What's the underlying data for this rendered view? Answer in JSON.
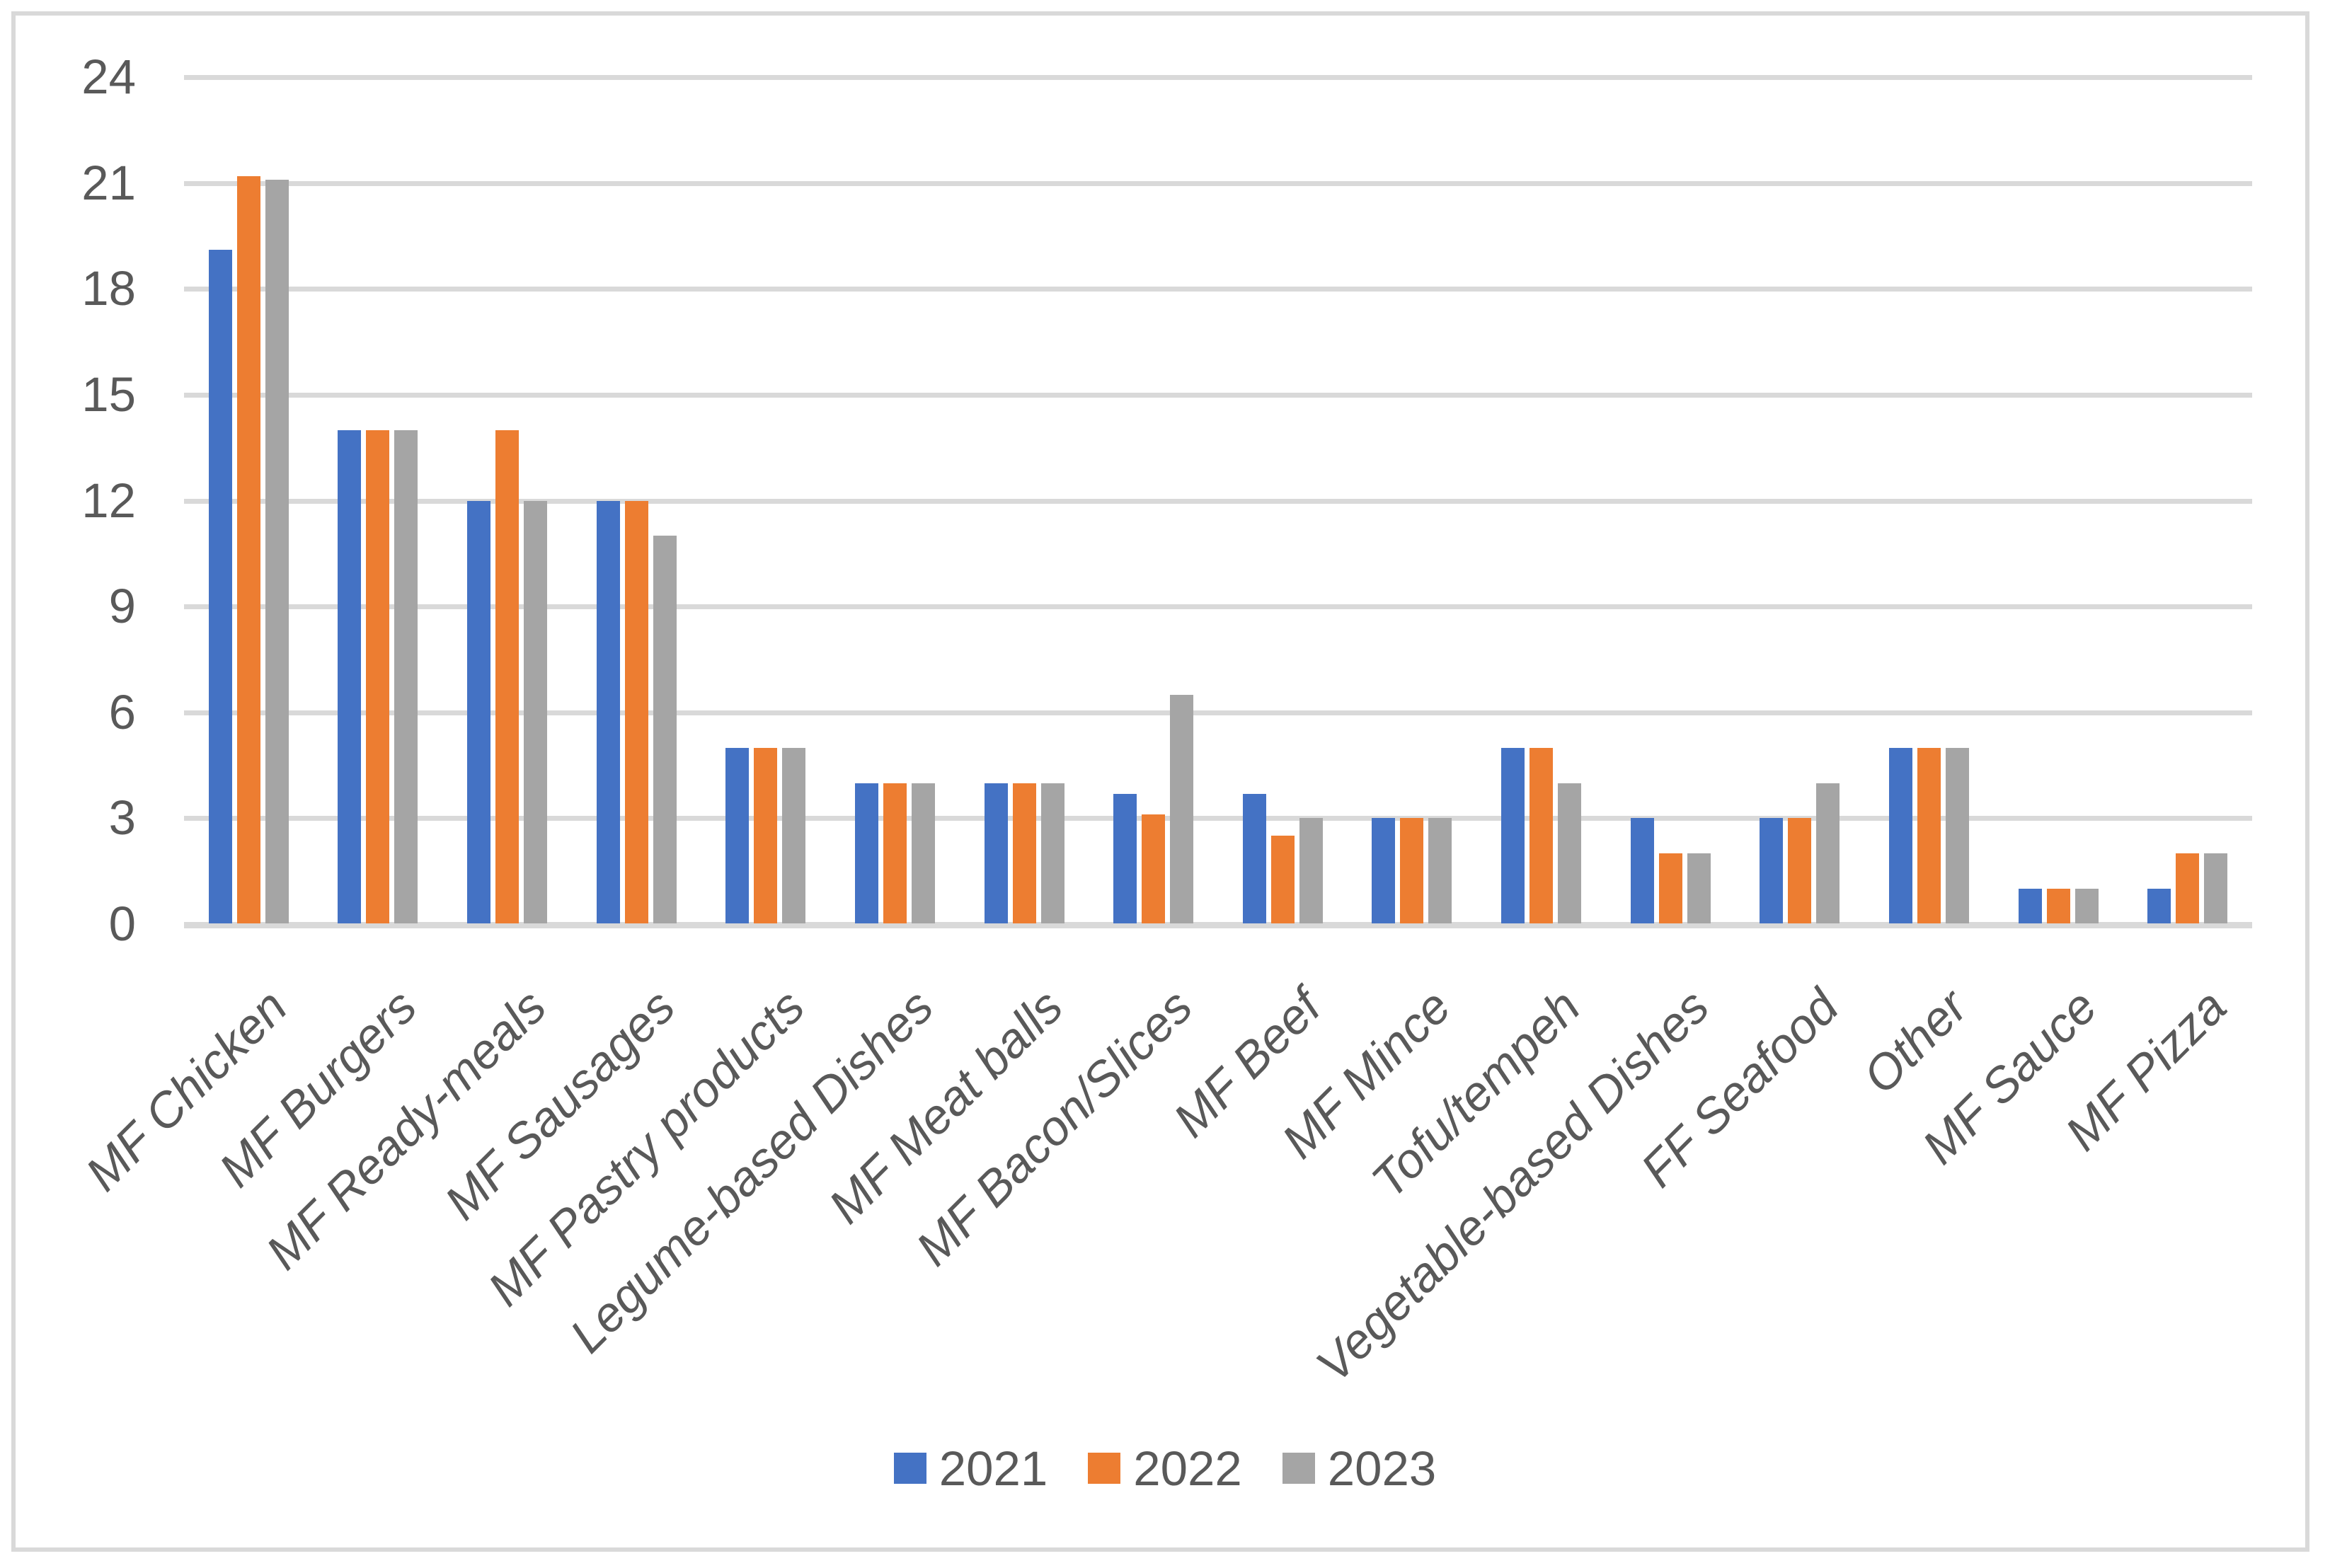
{
  "chart_data": {
    "type": "bar",
    "title": "",
    "xlabel": "",
    "ylabel": "",
    "categories": [
      "MF Chicken",
      "MF Burgers",
      "MF Ready-meals",
      "MF Sausages",
      "MF Pastry products",
      "Legume-based Dishes",
      "MF Meat balls",
      "MF Bacon/Slices",
      "MF Beef",
      "MF Mince",
      "Tofu/tempeh",
      "Vegetable-based Dishes",
      "FF Seafood",
      "Other",
      "MF Sauce",
      "MF Pizza"
    ],
    "series": [
      {
        "name": "2021",
        "color": "#4472C4",
        "values": [
          19.1,
          14,
          12,
          12,
          5,
          4,
          4,
          3.7,
          3.7,
          3,
          5,
          3,
          3,
          5,
          1,
          1
        ]
      },
      {
        "name": "2022",
        "color": "#ED7D31",
        "values": [
          21.2,
          14,
          14,
          12,
          5,
          4,
          4,
          3.1,
          2.5,
          3,
          5,
          2,
          3,
          5,
          1,
          2
        ]
      },
      {
        "name": "2023",
        "color": "#A5A5A5",
        "values": [
          21.1,
          14,
          12,
          11,
          5,
          4,
          4,
          6.5,
          3,
          3,
          4,
          2,
          4,
          5,
          1,
          2
        ]
      }
    ],
    "ylim": [
      0,
      24
    ],
    "ytick_step": 3,
    "yticks": [
      "24",
      "21",
      "18",
      "15",
      "12",
      "9",
      "6",
      "3",
      "0"
    ],
    "grid": true,
    "legend_position": "bottom"
  },
  "styles": {
    "gridline_color": "#D9D9D9",
    "axis_line_color": "#D9D9D9",
    "frame_border_color": "#D9D9D9",
    "text_color": "#595959",
    "background_color": "#FFFFFF"
  }
}
